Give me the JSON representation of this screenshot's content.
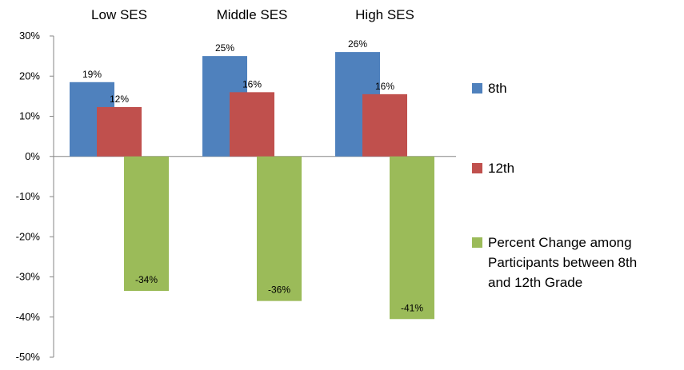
{
  "chart_data": {
    "type": "bar",
    "categories": [
      "Low SES",
      "Middle SES",
      "High SES"
    ],
    "series": [
      {
        "name": "8th",
        "values": [
          18.5,
          25,
          26
        ],
        "labels": [
          "19%",
          "25%",
          "26%"
        ],
        "color": "#4F81BD"
      },
      {
        "name": "12th",
        "values": [
          12.3,
          16,
          15.5
        ],
        "labels": [
          "12%",
          "16%",
          "16%"
        ],
        "color": "#C0504D"
      },
      {
        "name": "Percent Change among Participants between 8th and 12th Grade",
        "legend_lines": [
          "Percent Change among",
          "Participants between 8th",
          "and 12th Grade"
        ],
        "values": [
          -33.5,
          -36,
          -40.5
        ],
        "labels": [
          "-34%",
          "-36%",
          "-41%"
        ],
        "color": "#9BBB59"
      }
    ],
    "ylim": [
      -50,
      30
    ],
    "yticks": [
      30,
      20,
      10,
      0,
      -10,
      -20,
      -30,
      -40,
      -50
    ],
    "ytick_labels": [
      "30%",
      "20%",
      "10%",
      "0%",
      "-10%",
      "-20%",
      "-30%",
      "-40%",
      "-50%"
    ],
    "category_labels_position": "top",
    "legend_position": "right",
    "grid": false,
    "title": "",
    "xlabel": "",
    "ylabel": ""
  }
}
